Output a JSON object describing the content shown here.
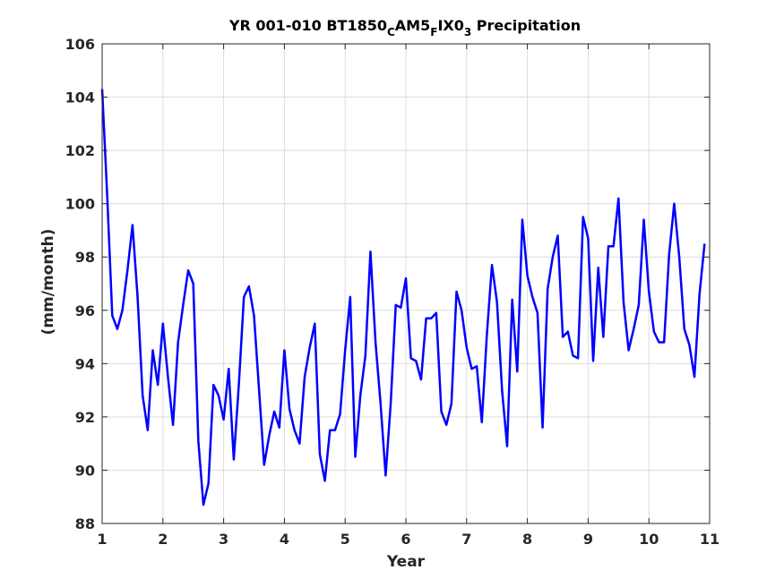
{
  "chart_data": {
    "type": "line",
    "title": {
      "parts": [
        {
          "text": "YR 001-010 BT1850",
          "sub": false
        },
        {
          "text": "C",
          "sub": true
        },
        {
          "text": "AM5",
          "sub": false
        },
        {
          "text": "F",
          "sub": true
        },
        {
          "text": "IX0",
          "sub": false
        },
        {
          "text": "3",
          "sub": true
        },
        {
          "text": " Precipitation",
          "sub": false
        }
      ]
    },
    "xlabel": "Year",
    "ylabel": "(mm/month)",
    "xlim": [
      1,
      11
    ],
    "ylim": [
      88,
      106
    ],
    "xticks": [
      1,
      2,
      3,
      4,
      5,
      6,
      7,
      8,
      9,
      10,
      11
    ],
    "yticks": [
      88,
      90,
      92,
      94,
      96,
      98,
      100,
      102,
      104,
      106
    ],
    "grid": true,
    "line_color": "#0000ff",
    "series": [
      {
        "x_start": 1.0,
        "x_step": 0.0833333,
        "values": [
          104.3,
          100.3,
          95.8,
          95.3,
          96.0,
          97.5,
          99.2,
          96.5,
          92.8,
          91.5,
          94.5,
          93.2,
          95.5,
          93.5,
          91.7,
          94.8,
          96.2,
          97.5,
          97.0,
          91.1,
          88.7,
          89.5,
          93.2,
          92.8,
          91.9,
          93.8,
          90.4,
          93.2,
          96.5,
          96.9,
          95.8,
          93.0,
          90.2,
          91.3,
          92.2,
          91.6,
          94.5,
          92.3,
          91.5,
          91.0,
          93.5,
          94.6,
          95.5,
          90.6,
          89.6,
          91.5,
          91.5,
          92.1,
          94.5,
          96.5,
          90.5,
          92.8,
          94.3,
          98.2,
          94.8,
          92.5,
          89.8,
          92.5,
          96.2,
          96.1,
          97.2,
          94.2,
          94.1,
          93.4,
          95.7,
          95.7,
          95.9,
          92.2,
          91.7,
          92.5,
          96.7,
          96.0,
          94.6,
          93.8,
          93.9,
          91.8,
          95.1,
          97.7,
          96.3,
          93.0,
          90.9,
          96.4,
          93.7,
          99.4,
          97.3,
          96.5,
          95.9,
          91.6,
          96.8,
          98.0,
          98.8,
          95.0,
          95.2,
          94.3,
          94.2,
          99.5,
          98.7,
          94.1,
          97.6,
          95.0,
          98.4,
          98.4,
          100.2,
          96.3,
          94.5,
          95.3,
          96.2,
          99.4,
          96.7,
          95.2,
          94.8,
          94.8,
          98.1,
          100.0,
          98.0,
          95.3,
          94.7,
          93.5,
          96.6,
          98.5
        ]
      }
    ]
  }
}
